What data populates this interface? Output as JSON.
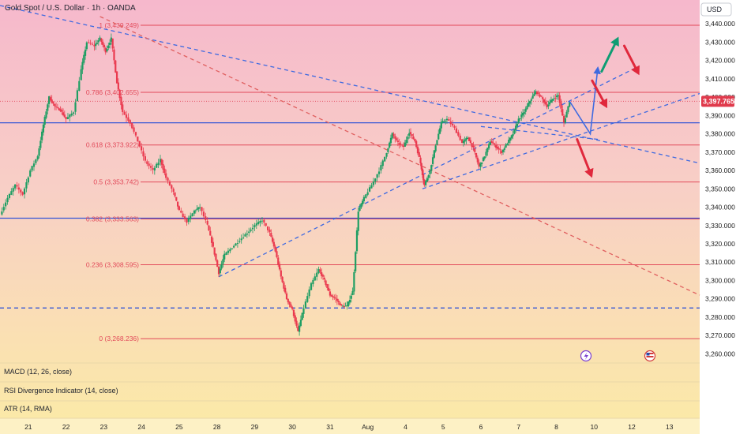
{
  "header": {
    "title": "Gold Spot / U.S. Dollar · 1h · OANDA",
    "currency": "USD"
  },
  "chart_data": {
    "type": "line",
    "symbol": "XAUUSD",
    "timeframe": "1h",
    "ylim": [
      3255,
      3453
    ],
    "y_ticks": [
      "3,260.000",
      "3,270.000",
      "3,280.000",
      "3,290.000",
      "3,300.000",
      "3,310.000",
      "3,320.000",
      "3,330.000",
      "3,340.000",
      "3,350.000",
      "3,360.000",
      "3,370.000",
      "3,380.000",
      "3,390.000",
      "3,400.000",
      "3,410.000",
      "3,420.000",
      "3,430.000",
      "3,440.000"
    ],
    "x_ticks": [
      {
        "label": "21",
        "t": 21
      },
      {
        "label": "22",
        "t": 22
      },
      {
        "label": "23",
        "t": 23
      },
      {
        "label": "24",
        "t": 24
      },
      {
        "label": "25",
        "t": 25
      },
      {
        "label": "28",
        "t": 26
      },
      {
        "label": "29",
        "t": 27
      },
      {
        "label": "30",
        "t": 28
      },
      {
        "label": "31",
        "t": 29
      },
      {
        "label": "Aug",
        "t": 30
      },
      {
        "label": "4",
        "t": 31
      },
      {
        "label": "5",
        "t": 32
      },
      {
        "label": "6",
        "t": 33
      },
      {
        "label": "7",
        "t": 34
      },
      {
        "label": "8",
        "t": 35
      },
      {
        "label": "10",
        "t": 36
      },
      {
        "label": "12",
        "t": 37
      },
      {
        "label": "13",
        "t": 38
      }
    ],
    "xlim": [
      20.25,
      38.8
    ],
    "last_price": "3,397.765",
    "price_path": [
      [
        20.25,
        3336
      ],
      [
        20.45,
        3345
      ],
      [
        20.65,
        3352
      ],
      [
        20.85,
        3347
      ],
      [
        21.05,
        3360
      ],
      [
        21.25,
        3368
      ],
      [
        21.4,
        3385
      ],
      [
        21.55,
        3400
      ],
      [
        21.7,
        3395
      ],
      [
        21.85,
        3393
      ],
      [
        22.0,
        3388
      ],
      [
        22.2,
        3392
      ],
      [
        22.4,
        3415
      ],
      [
        22.55,
        3430
      ],
      [
        22.75,
        3428
      ],
      [
        22.9,
        3432
      ],
      [
        23.05,
        3425
      ],
      [
        23.2,
        3432
      ],
      [
        23.35,
        3408
      ],
      [
        23.5,
        3392
      ],
      [
        23.7,
        3386
      ],
      [
        23.9,
        3376
      ],
      [
        24.1,
        3365
      ],
      [
        24.3,
        3360
      ],
      [
        24.5,
        3366
      ],
      [
        24.65,
        3356
      ],
      [
        24.85,
        3348
      ],
      [
        25.0,
        3338
      ],
      [
        25.2,
        3332
      ],
      [
        25.4,
        3338
      ],
      [
        25.55,
        3340
      ],
      [
        25.75,
        3330
      ],
      [
        25.9,
        3318
      ],
      [
        26.05,
        3304
      ],
      [
        26.2,
        3314
      ],
      [
        26.4,
        3318
      ],
      [
        26.6,
        3322
      ],
      [
        26.8,
        3326
      ],
      [
        27.0,
        3330
      ],
      [
        27.2,
        3333
      ],
      [
        27.4,
        3326
      ],
      [
        27.55,
        3316
      ],
      [
        27.7,
        3302
      ],
      [
        27.85,
        3290
      ],
      [
        28.0,
        3284
      ],
      [
        28.15,
        3272
      ],
      [
        28.3,
        3285
      ],
      [
        28.5,
        3298
      ],
      [
        28.7,
        3306
      ],
      [
        28.85,
        3300
      ],
      [
        29.0,
        3292
      ],
      [
        29.15,
        3290
      ],
      [
        29.3,
        3286
      ],
      [
        29.45,
        3286
      ],
      [
        29.6,
        3294
      ],
      [
        29.75,
        3338
      ],
      [
        29.9,
        3345
      ],
      [
        30.1,
        3352
      ],
      [
        30.3,
        3360
      ],
      [
        30.5,
        3370
      ],
      [
        30.65,
        3380
      ],
      [
        30.8,
        3375
      ],
      [
        30.95,
        3373
      ],
      [
        31.1,
        3381
      ],
      [
        31.25,
        3376
      ],
      [
        31.4,
        3364
      ],
      [
        31.5,
        3352
      ],
      [
        31.65,
        3360
      ],
      [
        31.8,
        3374
      ],
      [
        31.95,
        3386
      ],
      [
        32.1,
        3388
      ],
      [
        32.3,
        3383
      ],
      [
        32.5,
        3375
      ],
      [
        32.65,
        3378
      ],
      [
        32.8,
        3372
      ],
      [
        32.95,
        3362
      ],
      [
        33.1,
        3368
      ],
      [
        33.25,
        3376
      ],
      [
        33.4,
        3373
      ],
      [
        33.55,
        3370
      ],
      [
        33.7,
        3375
      ],
      [
        33.85,
        3380
      ],
      [
        34.0,
        3388
      ],
      [
        34.15,
        3392
      ],
      [
        34.3,
        3398
      ],
      [
        34.45,
        3403
      ],
      [
        34.6,
        3400
      ],
      [
        34.75,
        3395
      ],
      [
        34.9,
        3399
      ],
      [
        35.05,
        3401
      ],
      [
        35.2,
        3386
      ],
      [
        35.35,
        3397.8
      ]
    ],
    "fib_levels": [
      {
        "label": "1 (3,439.249)",
        "value": 3439.25
      },
      {
        "label": "0.786 (3,402.655)",
        "value": 3402.66
      },
      {
        "label": "0.618 (3,373.922)",
        "value": 3373.92
      },
      {
        "label": "0.5 (3,353.742)",
        "value": 3353.74
      },
      {
        "label": "0.382 (3,333.563)",
        "value": 3333.56
      },
      {
        "label": "0.236 (3,308.595)",
        "value": 3308.6
      },
      {
        "label": "0 (3,268.236)",
        "value": 3268.24
      }
    ],
    "horizontal_lines": [
      {
        "style": "solid",
        "color": "#3556d6",
        "value": 3386
      },
      {
        "style": "solid",
        "color": "#3556d6",
        "value": 3334
      },
      {
        "style": "dashed",
        "color": "#3556d6",
        "value": 3285
      }
    ],
    "trend_lines": [
      {
        "style": "dashed",
        "color": "#3f6ae0",
        "from": [
          20.25,
          3450
        ],
        "to": [
          38.8,
          3364
        ]
      },
      {
        "style": "dashed",
        "color": "#e06060",
        "from": [
          22.9,
          3444
        ],
        "to": [
          38.8,
          3292
        ]
      },
      {
        "style": "dashed",
        "color": "#3f6ae0",
        "from": [
          26.05,
          3302
        ],
        "to": [
          37.2,
          3417
        ]
      },
      {
        "style": "dashed",
        "color": "#3f6ae0",
        "from": [
          31.45,
          3350
        ],
        "to": [
          38.8,
          3402
        ]
      },
      {
        "style": "dashed",
        "color": "#3f6ae0",
        "from": [
          33.0,
          3384
        ],
        "to": [
          36.1,
          3377
        ]
      }
    ],
    "projection_path": [
      [
        35.35,
        3397.8
      ],
      [
        35.9,
        3380
      ],
      [
        36.1,
        3416
      ]
    ],
    "arrows": [
      {
        "color": "#0f9d73",
        "from": [
          36.2,
          3414
        ],
        "to": [
          36.65,
          3433
        ]
      },
      {
        "color": "#e0283c",
        "from": [
          36.8,
          3428
        ],
        "to": [
          37.2,
          3412
        ]
      },
      {
        "color": "#e0283c",
        "from": [
          35.95,
          3409
        ],
        "to": [
          36.35,
          3394
        ]
      },
      {
        "color": "#e0283c",
        "from": [
          35.55,
          3377
        ],
        "to": [
          35.95,
          3356
        ]
      }
    ],
    "indicators": [
      "MACD (12, 26, close)",
      "RSI Divergence Indicator (14, close)",
      "ATR (14, RMA)"
    ],
    "colors": {
      "bull": "#1e9e63",
      "bear": "#ea3a4f",
      "fib": "#e24a5a",
      "price_tag_bg": "#e03a4c",
      "axis_bg": "#ffffff"
    }
  }
}
